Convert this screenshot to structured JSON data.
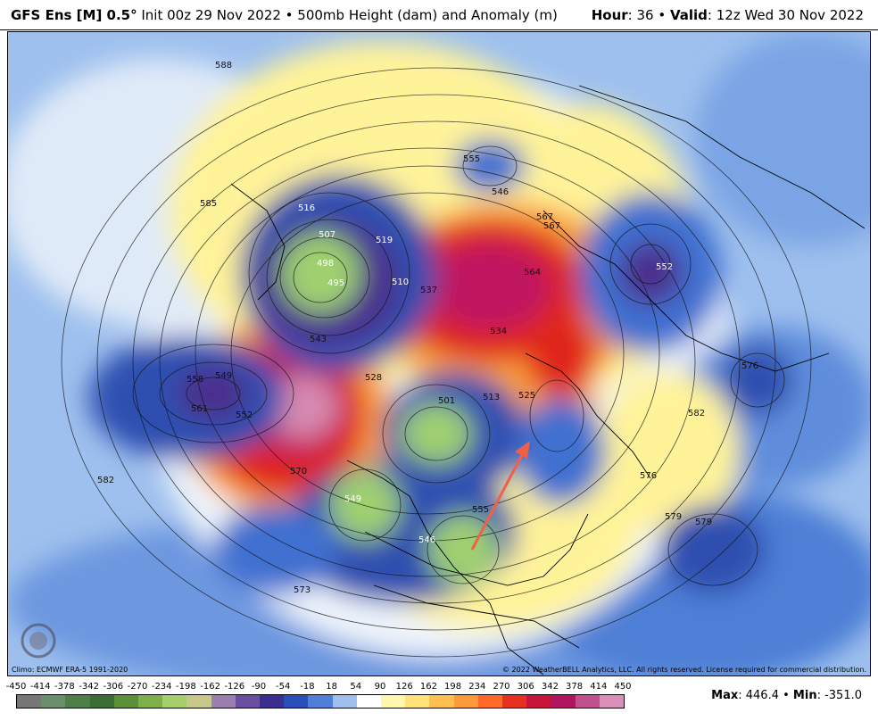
{
  "header": {
    "model": "GFS Ens [M] 0.5",
    "degree": "°",
    "init": " Init 00z 29 Nov 2022 • 500mb Height (dam) and Anomaly (m)",
    "hour_label": "Hour",
    "hour_value": ": 36 • ",
    "valid_label": "Valid",
    "valid_value": ": 12z Wed 30 Nov 2022"
  },
  "map": {
    "contour_labels": [
      {
        "text": "588"
      },
      {
        "text": "585"
      },
      {
        "text": "582"
      },
      {
        "text": "573"
      },
      {
        "text": "579"
      },
      {
        "text": "570"
      },
      {
        "text": "561"
      },
      {
        "text": "558"
      },
      {
        "text": "549"
      },
      {
        "text": "543"
      },
      {
        "text": "552"
      },
      {
        "text": "519"
      },
      {
        "text": "516"
      },
      {
        "text": "507"
      },
      {
        "text": "498"
      },
      {
        "text": "495"
      },
      {
        "text": "510"
      },
      {
        "text": "537"
      },
      {
        "text": "534"
      },
      {
        "text": "555"
      },
      {
        "text": "546"
      },
      {
        "text": "564"
      },
      {
        "text": "567"
      },
      {
        "text": "576"
      },
      {
        "text": "582"
      },
      {
        "text": "576"
      },
      {
        "text": "579"
      },
      {
        "text": "546"
      },
      {
        "text": "528"
      },
      {
        "text": "525"
      },
      {
        "text": "513"
      },
      {
        "text": "501"
      },
      {
        "text": "549"
      },
      {
        "text": "555"
      },
      {
        "text": "552"
      },
      {
        "text": "567"
      }
    ],
    "colors": {
      "deep_blue": "#1e3c96",
      "blue": "#3f6fd0",
      "light_blue": "#8fb6ea",
      "pale_blue": "#dce8f8",
      "purple": "#4b2d8c",
      "green": "#9fd070",
      "yellow": "#fff39a",
      "orange": "#f9a03a",
      "red": "#e0281e",
      "magenta": "#c01860",
      "pink": "#d88ab0"
    },
    "logo_text": "WEATHERBELL",
    "climo": "Climo: ECMWF ERA-5 1991-2020",
    "copyright": "© 2022 WeatherBELL Analytics, LLC. All rights reserved. License required for commercial distribution."
  },
  "colorbar": {
    "ticks": [
      "-450",
      "-414",
      "-378",
      "-342",
      "-306",
      "-270",
      "-234",
      "-198",
      "-162",
      "-126",
      "-90",
      "-54",
      "-18",
      "18",
      "54",
      "90",
      "126",
      "162",
      "198",
      "234",
      "270",
      "306",
      "342",
      "378",
      "414",
      "450"
    ],
    "colors": [
      "#777777",
      "#6a8f6a",
      "#4f7f48",
      "#3a6e35",
      "#5b8f3a",
      "#7fb04a",
      "#a5cf6a",
      "#c7c78a",
      "#9a7fb0",
      "#6a4ea0",
      "#3a2f90",
      "#2a4fb8",
      "#4f80d8",
      "#9fc0ee",
      "#ffffff",
      "#fff6b0",
      "#ffe27a",
      "#ffc050",
      "#ff9a3a",
      "#ff6a2a",
      "#e8301e",
      "#c81438",
      "#b01660",
      "#c05090",
      "#d890b8"
    ],
    "max_label": "Max",
    "max_value": ": 446.4 • ",
    "min_label": "Min",
    "min_value": ": -351.0"
  }
}
